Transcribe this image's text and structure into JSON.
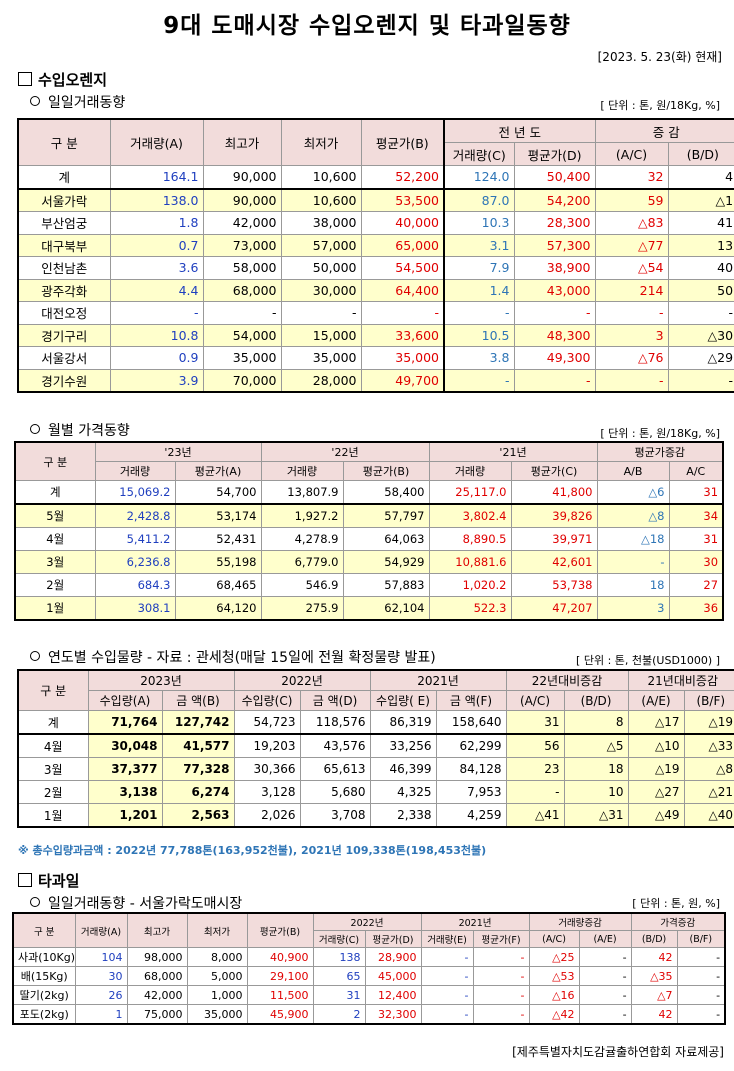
{
  "title": "9대 도매시장 수입오렌지 및 타과일동향",
  "date": "[2023. 5. 23(화) 현재]",
  "section1": "수입오렌지",
  "daily": {
    "subtitle": "일일거래동향",
    "unit": "[ 단위 : 톤, 원/18Kg, %]",
    "h_gubun": "구    분",
    "h_vol": "거래량(A)",
    "h_max": "최고가",
    "h_min": "최저가",
    "h_avg": "평균가(B)",
    "h_prev": "전 년 도",
    "h_chg": "증    감",
    "h_pvol": "거래량(C)",
    "h_pavg": "평균가(D)",
    "h_ac": "(A/C)",
    "h_bd": "(B/D)",
    "rows": [
      {
        "n": "계",
        "a": "164.1",
        "b": "90,000",
        "c": "10,600",
        "d": "52,200",
        "e": "124.0",
        "f": "50,400",
        "g": "32",
        "h": "4"
      },
      {
        "n": "서울가락",
        "a": "138.0",
        "b": "90,000",
        "c": "10,600",
        "d": "53,500",
        "e": "87.0",
        "f": "54,200",
        "g": "59",
        "h": "△1"
      },
      {
        "n": "부산엄궁",
        "a": "1.8",
        "b": "42,000",
        "c": "38,000",
        "d": "40,000",
        "e": "10.3",
        "f": "28,300",
        "g": "△83",
        "h": "41"
      },
      {
        "n": "대구북부",
        "a": "0.7",
        "b": "73,000",
        "c": "57,000",
        "d": "65,000",
        "e": "3.1",
        "f": "57,300",
        "g": "△77",
        "h": "13"
      },
      {
        "n": "인천남촌",
        "a": "3.6",
        "b": "58,000",
        "c": "50,000",
        "d": "54,500",
        "e": "7.9",
        "f": "38,900",
        "g": "△54",
        "h": "40"
      },
      {
        "n": "광주각화",
        "a": "4.4",
        "b": "68,000",
        "c": "30,000",
        "d": "64,400",
        "e": "1.4",
        "f": "43,000",
        "g": "214",
        "h": "50"
      },
      {
        "n": "대전오정",
        "a": "-",
        "b": "-",
        "c": "-",
        "d": "-",
        "e": "-",
        "f": "-",
        "g": "-",
        "h": "-"
      },
      {
        "n": "경기구리",
        "a": "10.8",
        "b": "54,000",
        "c": "15,000",
        "d": "33,600",
        "e": "10.5",
        "f": "48,300",
        "g": "3",
        "h": "△30"
      },
      {
        "n": "서울강서",
        "a": "0.9",
        "b": "35,000",
        "c": "35,000",
        "d": "35,000",
        "e": "3.8",
        "f": "49,300",
        "g": "△76",
        "h": "△29"
      },
      {
        "n": "경기수원",
        "a": "3.9",
        "b": "70,000",
        "c": "28,000",
        "d": "49,700",
        "e": "-",
        "f": "-",
        "g": "-",
        "h": "-"
      }
    ]
  },
  "monthly": {
    "subtitle": "월별 가격동향",
    "unit": "[ 단위 : 톤, 원/18Kg, %]",
    "h_gubun": "구    분",
    "y23": "'23년",
    "y22": "'22년",
    "y21": "'21년",
    "h_chg": "평균가증감",
    "h_vol": "거래량",
    "h_avgA": "평균가(A)",
    "h_avgB": "평균가(B)",
    "h_avgC": "평균가(C)",
    "h_ab": "A/B",
    "h_ac": "A/C",
    "rows": [
      {
        "n": "계",
        "a": "15,069.2",
        "b": "54,700",
        "c": "13,807.9",
        "d": "58,400",
        "e": "25,117.0",
        "f": "41,800",
        "g": "△6",
        "h": "31"
      },
      {
        "n": "5월",
        "a": "2,428.8",
        "b": "53,174",
        "c": "1,927.2",
        "d": "57,797",
        "e": "3,802.4",
        "f": "39,826",
        "g": "△8",
        "h": "34"
      },
      {
        "n": "4월",
        "a": "5,411.2",
        "b": "52,431",
        "c": "4,278.9",
        "d": "64,063",
        "e": "8,890.5",
        "f": "39,971",
        "g": "△18",
        "h": "31"
      },
      {
        "n": "3월",
        "a": "6,236.8",
        "b": "55,198",
        "c": "6,779.0",
        "d": "54,929",
        "e": "10,881.6",
        "f": "42,601",
        "g": "-",
        "h": "30"
      },
      {
        "n": "2월",
        "a": "684.3",
        "b": "68,465",
        "c": "546.9",
        "d": "57,883",
        "e": "1,020.2",
        "f": "53,738",
        "g": "18",
        "h": "27"
      },
      {
        "n": "1월",
        "a": "308.1",
        "b": "64,120",
        "c": "275.9",
        "d": "62,104",
        "e": "522.3",
        "f": "47,207",
        "g": "3",
        "h": "36"
      }
    ]
  },
  "yearly": {
    "subtitle": "연도별 수입물량 - 자료 : 관세청(매달 15일에 전월 확정물량 발표)",
    "unit": "[ 단위 : 톤, 천불(USD1000) ]",
    "h_gubun": "구 분",
    "y2023": "2023년",
    "y2022": "2022년",
    "y2021": "2021년",
    "h_chg22": "22년대비증감",
    "h_chg21": "21년대비증감",
    "h_A": "수입량(A)",
    "h_B": "금  액(B)",
    "h_C": "수입량(C)",
    "h_D": "금  액(D)",
    "h_E": "수입량( E)",
    "h_F": "금  액(F)",
    "h_AC": "(A/C)",
    "h_BD": "(B/D)",
    "h_AE": "(A/E)",
    "h_BF": "(B/F)",
    "rows": [
      {
        "n": "계",
        "a": "71,764",
        "b": "127,742",
        "c": "54,723",
        "d": "118,576",
        "e": "86,319",
        "f": "158,640",
        "g": "31",
        "h": "8",
        "i": "△17",
        "j": "△19"
      },
      {
        "n": "4월",
        "a": "30,048",
        "b": "41,577",
        "c": "19,203",
        "d": "43,576",
        "e": "33,256",
        "f": "62,299",
        "g": "56",
        "h": "△5",
        "i": "△10",
        "j": "△33"
      },
      {
        "n": "3월",
        "a": "37,377",
        "b": "77,328",
        "c": "30,366",
        "d": "65,613",
        "e": "46,399",
        "f": "84,128",
        "g": "23",
        "h": "18",
        "i": "△19",
        "j": "△8"
      },
      {
        "n": "2월",
        "a": "3,138",
        "b": "6,274",
        "c": "3,128",
        "d": "5,680",
        "e": "4,325",
        "f": "7,953",
        "g": "-",
        "h": "10",
        "i": "△27",
        "j": "△21"
      },
      {
        "n": "1월",
        "a": "1,201",
        "b": "2,563",
        "c": "2,026",
        "d": "3,708",
        "e": "2,338",
        "f": "4,259",
        "g": "△41",
        "h": "△31",
        "i": "△49",
        "j": "△40"
      }
    ],
    "note": "※ 총수입량과금액 : 2022년 77,788톤(163,952천불),  2021년 109,338톤(198,453천불)"
  },
  "section2": "타과일",
  "fruit": {
    "subtitle": "일일거래동향 - 서울가락도매시장",
    "unit": "[ 단위 : 톤, 원, %]",
    "h_gubun": "구  분",
    "h_vol": "거래량(A)",
    "h_max": "최고가",
    "h_min": "최저가",
    "h_avg": "평균가(B)",
    "y2022": "2022년",
    "y2021": "2021년",
    "h_volchg": "거래량증감",
    "h_pricechg": "가격증감",
    "h_C": "거래량(C)",
    "h_D": "평균가(D)",
    "h_E": "거래량(E)",
    "h_F": "평균가(F)",
    "h_AC": "(A/C)",
    "h_AE": "(A/E)",
    "h_BD": "(B/D)",
    "h_BF": "(B/F)",
    "rows": [
      {
        "n": "사과(10Kg)",
        "a": "104",
        "b": "98,000",
        "c": "8,000",
        "d": "40,900",
        "e": "138",
        "f": "28,900",
        "g": "-",
        "h": "-",
        "i": "△25",
        "j": "-",
        "k": "42",
        "l": "-"
      },
      {
        "n": "배(15Kg)",
        "a": "30",
        "b": "68,000",
        "c": "5,000",
        "d": "29,100",
        "e": "65",
        "f": "45,000",
        "g": "-",
        "h": "-",
        "i": "△53",
        "j": "-",
        "k": "△35",
        "l": "-"
      },
      {
        "n": "딸기(2kg)",
        "a": "26",
        "b": "42,000",
        "c": "1,000",
        "d": "11,500",
        "e": "31",
        "f": "12,400",
        "g": "-",
        "h": "-",
        "i": "△16",
        "j": "-",
        "k": "△7",
        "l": "-"
      },
      {
        "n": "포도(2kg)",
        "a": "1",
        "b": "75,000",
        "c": "35,000",
        "d": "45,900",
        "e": "2",
        "f": "32,300",
        "g": "-",
        "h": "-",
        "i": "△42",
        "j": "-",
        "k": "42",
        "l": "-"
      }
    ]
  },
  "source": "[제주특별자치도감귤출하연합회 자료제공]"
}
